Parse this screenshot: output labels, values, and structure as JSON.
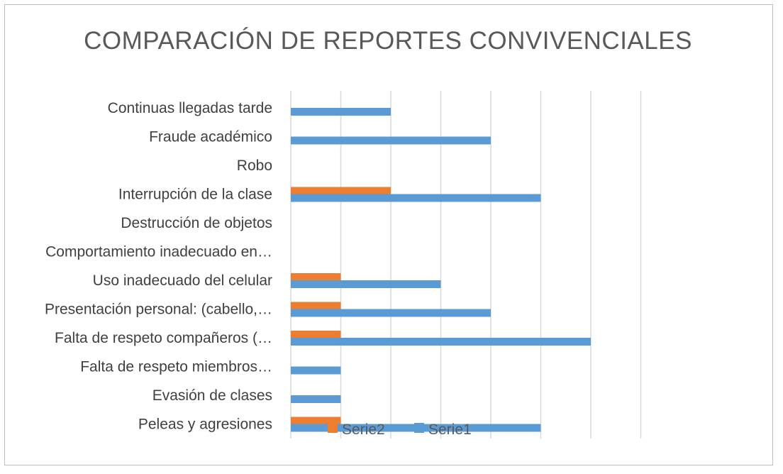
{
  "chart_data": {
    "type": "bar",
    "orientation": "horizontal",
    "title": "COMPARACIÓN DE REPORTES CONVIVENCIALES",
    "xlabel": "",
    "ylabel": "",
    "xlim": [
      0,
      7
    ],
    "grid": true,
    "legend_position": "bottom",
    "categories": [
      "Continuas llegadas tarde",
      "Fraude académico",
      "Robo",
      "Interrupción de la clase",
      "Destrucción de objetos",
      "Comportamiento inadecuado en…",
      "Uso inadecuado del celular",
      "Presentación personal: (cabello,…",
      "Falta de respeto compañeros (…",
      "Falta de  respeto miembros…",
      "Evasión de clases",
      "Peleas y agresiones"
    ],
    "series": [
      {
        "name": "Serie1",
        "color": "#5b9bd5",
        "values": [
          2,
          4,
          0,
          5,
          0,
          0,
          3,
          4,
          6,
          1,
          1,
          5
        ]
      },
      {
        "name": "Serie2",
        "color": "#ed7d31",
        "values": [
          0,
          0,
          0,
          2,
          0,
          0,
          1,
          1,
          1,
          0,
          0,
          1
        ]
      }
    ],
    "legend": [
      "Serie2",
      "Serie1"
    ]
  }
}
